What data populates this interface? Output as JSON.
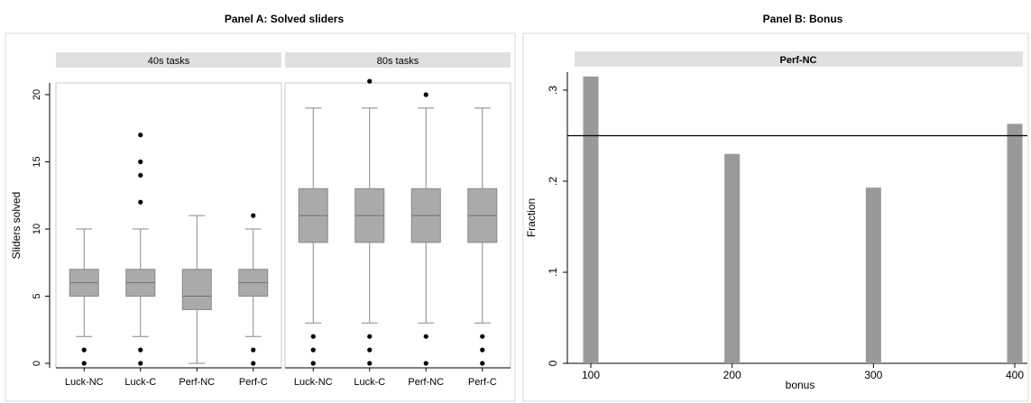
{
  "panels": {
    "a_title": "Panel A: Solved sliders",
    "b_title": "Panel B: Bonus"
  },
  "colors": {
    "box_fill": "#aaaaaa",
    "box_stroke": "#888888",
    "strip_bg": "#e0e0e0",
    "bar_fill": "#999999",
    "ref_line": "#000000",
    "outlier": "#000000"
  },
  "chart_data": [
    {
      "type": "box",
      "title": "Panel A: Solved sliders",
      "ylabel": "Sliders solved",
      "ylim": [
        0,
        22
      ],
      "yticks": [
        0,
        5,
        10,
        15,
        20
      ],
      "facets": [
        {
          "label": "40s tasks",
          "groups": [
            {
              "name": "Luck-NC",
              "whisker_low": 2,
              "q1": 5,
              "median": 6,
              "q3": 7,
              "whisker_high": 10,
              "outliers": [
                0,
                1
              ]
            },
            {
              "name": "Luck-C",
              "whisker_low": 2,
              "q1": 5,
              "median": 6,
              "q3": 7,
              "whisker_high": 10,
              "outliers": [
                0,
                1,
                12,
                14,
                15,
                17
              ]
            },
            {
              "name": "Perf-NC",
              "whisker_low": 0,
              "q1": 4,
              "median": 5,
              "q3": 7,
              "whisker_high": 11,
              "outliers": []
            },
            {
              "name": "Perf-C",
              "whisker_low": 2,
              "q1": 5,
              "median": 6,
              "q3": 7,
              "whisker_high": 10,
              "outliers": [
                0,
                1,
                11
              ]
            }
          ]
        },
        {
          "label": "80s tasks",
          "groups": [
            {
              "name": "Luck-NC",
              "whisker_low": 3,
              "q1": 9,
              "median": 11,
              "q3": 13,
              "whisker_high": 19,
              "outliers": [
                0,
                1,
                2
              ]
            },
            {
              "name": "Luck-C",
              "whisker_low": 3,
              "q1": 9,
              "median": 11,
              "q3": 13,
              "whisker_high": 19,
              "outliers": [
                0,
                1,
                2,
                21
              ]
            },
            {
              "name": "Perf-NC",
              "whisker_low": 3,
              "q1": 9,
              "median": 11,
              "q3": 13,
              "whisker_high": 19,
              "outliers": [
                0,
                2,
                20
              ]
            },
            {
              "name": "Perf-C",
              "whisker_low": 3,
              "q1": 9,
              "median": 11,
              "q3": 13,
              "whisker_high": 19,
              "outliers": [
                0,
                1,
                2
              ]
            }
          ]
        }
      ]
    },
    {
      "type": "bar",
      "title": "Panel B: Bonus",
      "facet_label": "Perf-NC",
      "xlabel": "bonus",
      "ylabel": "Fraction",
      "xlim": [
        88,
        412
      ],
      "ylim": [
        0,
        0.33
      ],
      "xticks": [
        100,
        200,
        300,
        400
      ],
      "yticks": [
        0,
        0.1,
        0.2,
        0.3
      ],
      "ytick_labels": [
        "0",
        ".1",
        ".2",
        ".3"
      ],
      "x": [
        100,
        200,
        300,
        400
      ],
      "values": [
        0.315,
        0.23,
        0.193,
        0.263
      ],
      "reference_line": 0.25
    }
  ]
}
